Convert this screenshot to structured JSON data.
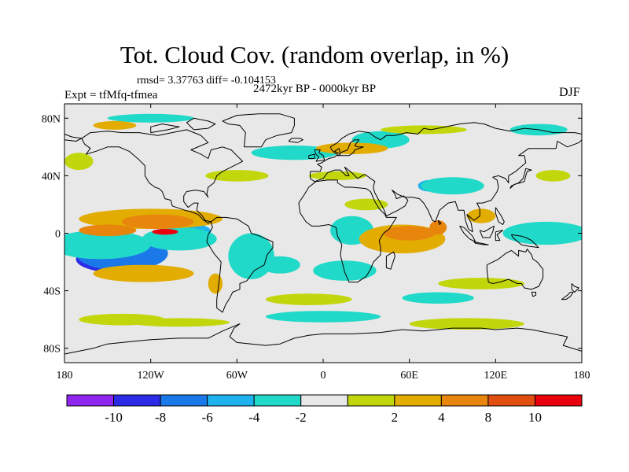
{
  "title": "Tot. Cloud Cov. (random overlap, in %)",
  "stats": "rmsd= 3.37763 diff= -0.104153",
  "experiment": "Expt = tfMfq-tfmea",
  "period": "2472kyr BP - 0000kyr BP",
  "season": "DJF",
  "map": {
    "projection": "cylindrical-equidistant",
    "lon_range": [
      -180,
      180
    ],
    "lat_range": [
      -90,
      90
    ],
    "lon_ticks": [
      {
        "value": -180,
        "label": "180"
      },
      {
        "value": -120,
        "label": "120W"
      },
      {
        "value": -60,
        "label": "60W"
      },
      {
        "value": 0,
        "label": "0"
      },
      {
        "value": 60,
        "label": "60E"
      },
      {
        "value": 120,
        "label": "120E"
      },
      {
        "value": 180,
        "label": "180"
      }
    ],
    "lat_ticks": [
      {
        "value": 80,
        "label": "80N"
      },
      {
        "value": 40,
        "label": "40N"
      },
      {
        "value": 0,
        "label": "0"
      },
      {
        "value": -40,
        "label": "40S"
      },
      {
        "value": -80,
        "label": "80S"
      }
    ],
    "background_color": "#e8e8e8",
    "coastline_color": "#000000"
  },
  "colorbar": {
    "colors": [
      "#8f26ef",
      "#2c2ce6",
      "#1a78e8",
      "#1eb2ee",
      "#20d9c8",
      "#e8e8e8",
      "#c2d60c",
      "#e2ac00",
      "#e7850d",
      "#e04e10",
      "#e8000d"
    ],
    "labels": [
      "-10",
      "-8",
      "-6",
      "-4",
      "-2",
      "2",
      "4",
      "8",
      "10"
    ]
  },
  "anomaly_regions": [
    {
      "level": 1,
      "lon": -147,
      "lat": -18,
      "rx": 25,
      "ry": 9
    },
    {
      "level": 2,
      "lon": -140,
      "lat": -14,
      "rx": 32,
      "ry": 12
    },
    {
      "level": 4,
      "lon": -155,
      "lat": -8,
      "rx": 35,
      "ry": 10
    },
    {
      "level": 3,
      "lon": -88,
      "lat": 1,
      "rx": 10,
      "ry": 5
    },
    {
      "level": 4,
      "lon": -100,
      "lat": -4,
      "rx": 26,
      "ry": 8
    },
    {
      "level": 4,
      "lon": -50,
      "lat": -16,
      "rx": 16,
      "ry": 16
    },
    {
      "level": 4,
      "lon": -30,
      "lat": -22,
      "rx": 14,
      "ry": 6
    },
    {
      "level": 3,
      "lon": 20,
      "lat": 3,
      "rx": 8,
      "ry": 5
    },
    {
      "level": 4,
      "lon": 20,
      "lat": 2,
      "rx": 15,
      "ry": 10
    },
    {
      "level": 4,
      "lon": 15,
      "lat": -26,
      "rx": 22,
      "ry": 7
    },
    {
      "level": 3,
      "lon": 74,
      "lat": 33,
      "rx": 8,
      "ry": 4
    },
    {
      "level": 4,
      "lon": 90,
      "lat": 33,
      "rx": 22,
      "ry": 6
    },
    {
      "level": 2,
      "lon": 162,
      "lat": -1,
      "rx": 18,
      "ry": 5
    },
    {
      "level": 4,
      "lon": 155,
      "lat": 0,
      "rx": 30,
      "ry": 8
    },
    {
      "level": 4,
      "lon": -20,
      "lat": 56,
      "rx": 30,
      "ry": 5
    },
    {
      "level": 4,
      "lon": 40,
      "lat": 65,
      "rx": 20,
      "ry": 6
    },
    {
      "level": 4,
      "lon": 0,
      "lat": -58,
      "rx": 40,
      "ry": 4
    },
    {
      "level": 4,
      "lon": 150,
      "lat": 72,
      "rx": 20,
      "ry": 4
    },
    {
      "level": 4,
      "lon": -120,
      "lat": 80,
      "rx": 30,
      "ry": 3
    },
    {
      "level": 4,
      "lon": 80,
      "lat": -45,
      "rx": 25,
      "ry": 4
    },
    {
      "level": 7,
      "lon": -120,
      "lat": 10,
      "rx": 50,
      "ry": 7
    },
    {
      "level": 8,
      "lon": -115,
      "lat": 8,
      "rx": 25,
      "ry": 5
    },
    {
      "level": 8,
      "lon": -150,
      "lat": 2,
      "rx": 20,
      "ry": 4
    },
    {
      "level": 10,
      "lon": -110,
      "lat": 1,
      "rx": 9,
      "ry": 2
    },
    {
      "level": 7,
      "lon": -125,
      "lat": -28,
      "rx": 35,
      "ry": 6
    },
    {
      "level": 7,
      "lon": -75,
      "lat": -35,
      "rx": 5,
      "ry": 7
    },
    {
      "level": 7,
      "lon": 55,
      "lat": -4,
      "rx": 30,
      "ry": 10
    },
    {
      "level": 8,
      "lon": 60,
      "lat": 0,
      "rx": 18,
      "ry": 5
    },
    {
      "level": 8,
      "lon": 80,
      "lat": 4,
      "rx": 6,
      "ry": 5
    },
    {
      "level": 7,
      "lon": 110,
      "lat": 12,
      "rx": 10,
      "ry": 5
    },
    {
      "level": 7,
      "lon": 20,
      "lat": 59,
      "rx": 25,
      "ry": 4
    },
    {
      "level": 7,
      "lon": -145,
      "lat": 75,
      "rx": 15,
      "ry": 3
    },
    {
      "level": 6,
      "lon": -60,
      "lat": 40,
      "rx": 22,
      "ry": 4
    },
    {
      "level": 6,
      "lon": 70,
      "lat": 72,
      "rx": 30,
      "ry": 3
    },
    {
      "level": 6,
      "lon": -140,
      "lat": -60,
      "rx": 30,
      "ry": 4
    },
    {
      "level": 6,
      "lon": 110,
      "lat": -35,
      "rx": 30,
      "ry": 4
    },
    {
      "level": 6,
      "lon": -10,
      "lat": -46,
      "rx": 30,
      "ry": 4
    },
    {
      "level": 6,
      "lon": 160,
      "lat": 40,
      "rx": 12,
      "ry": 4
    },
    {
      "level": 6,
      "lon": -170,
      "lat": 50,
      "rx": 10,
      "ry": 6
    },
    {
      "level": 6,
      "lon": 100,
      "lat": -63,
      "rx": 40,
      "ry": 4
    },
    {
      "level": 6,
      "lon": -100,
      "lat": -62,
      "rx": 35,
      "ry": 3
    },
    {
      "level": 6,
      "lon": 10,
      "lat": 40,
      "rx": 20,
      "ry": 3
    },
    {
      "level": 6,
      "lon": 30,
      "lat": 20,
      "rx": 15,
      "ry": 4
    }
  ]
}
